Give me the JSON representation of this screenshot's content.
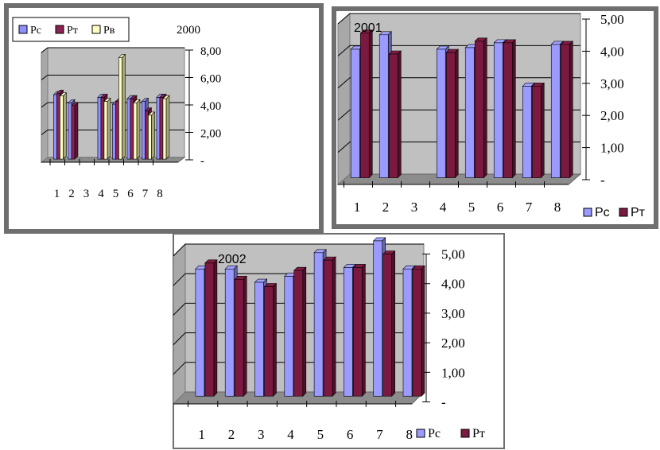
{
  "chart_data": [
    {
      "type": "bar",
      "title": "2000",
      "categories": [
        "1",
        "2",
        "3",
        "4",
        "5",
        "6",
        "7",
        "8"
      ],
      "y_ticks": [
        "-",
        "2,00",
        "4,00",
        "6,00",
        "8,00"
      ],
      "ylim": [
        0,
        8
      ],
      "legend_position": "top-left",
      "grid": true,
      "series": [
        {
          "name": "Pc",
          "color": "#8f8fff",
          "values": [
            4.7,
            4.1,
            null,
            4.5,
            4.0,
            4.4,
            4.2,
            4.5
          ]
        },
        {
          "name": "Pт",
          "color": "#8b2252",
          "values": [
            4.8,
            3.9,
            null,
            4.5,
            4.2,
            4.4,
            3.5,
            4.5
          ]
        },
        {
          "name": "Pв",
          "color": "#ffffc0",
          "values": [
            4.6,
            null,
            null,
            4.2,
            7.4,
            4.1,
            3.2,
            4.4
          ]
        }
      ]
    },
    {
      "type": "bar",
      "title": "2001",
      "categories": [
        "1",
        "2",
        "3",
        "4",
        "5",
        "6",
        "7",
        "8"
      ],
      "y_ticks": [
        "-",
        "1,00",
        "2,00",
        "3,00",
        "4,00",
        "5,00"
      ],
      "ylim": [
        0,
        5
      ],
      "legend_position": "bottom-right",
      "grid": true,
      "series": [
        {
          "name": "Pc",
          "color": "#9a9aff",
          "values": [
            4.0,
            4.45,
            null,
            4.0,
            4.05,
            4.2,
            2.85,
            4.15
          ]
        },
        {
          "name": "Pт",
          "color": "#7a1a40",
          "values": [
            4.5,
            3.85,
            null,
            3.9,
            4.25,
            4.2,
            2.85,
            4.15
          ]
        }
      ]
    },
    {
      "type": "bar",
      "title": "2002",
      "categories": [
        "1",
        "2",
        "3",
        "4",
        "5",
        "6",
        "7",
        "8"
      ],
      "y_ticks": [
        "-",
        "1,00",
        "2,00",
        "3,00",
        "4,00",
        "5,00"
      ],
      "ylim": [
        0,
        5
      ],
      "legend_position": "bottom-right",
      "grid": true,
      "series": [
        {
          "name": "Pc",
          "color": "#9a9aff",
          "values": [
            4.3,
            4.3,
            3.85,
            4.05,
            4.85,
            4.35,
            5.25,
            4.3
          ]
        },
        {
          "name": "Pт",
          "color": "#7a1a40",
          "values": [
            4.5,
            3.95,
            3.7,
            4.25,
            4.6,
            4.35,
            4.8,
            4.3
          ]
        }
      ]
    }
  ]
}
